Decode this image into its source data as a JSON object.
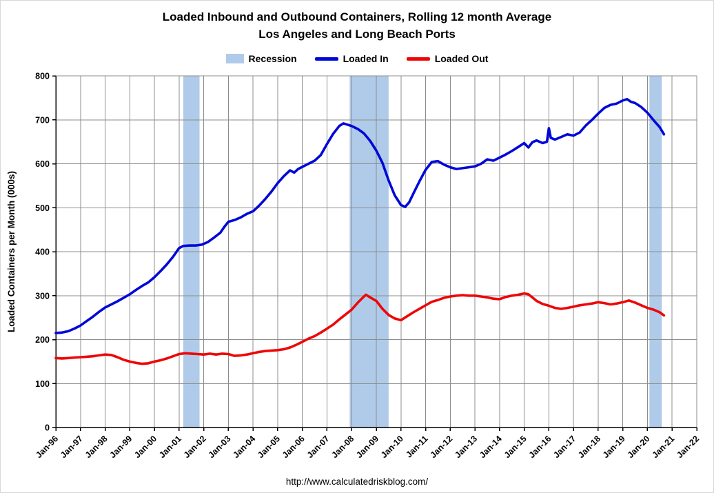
{
  "page": {
    "title_line1": "Loaded Inbound and Outbound Containers, Rolling 12 month Average",
    "title_line2": "Los Angeles and Long Beach Ports",
    "footer_url": "http://www.calculatedriskblog.com/"
  },
  "legend": {
    "recession_label": "Recession",
    "loaded_in_label": "Loaded In",
    "loaded_out_label": "Loaded Out"
  },
  "chart_data": {
    "type": "line",
    "title": "Loaded Inbound and Outbound Containers, Rolling 12 month Average — Los Angeles and Long Beach Ports",
    "xlabel": "",
    "ylabel": "Loaded Containers per Month (000s)",
    "ylim": [
      0,
      800
    ],
    "ytick_step": 100,
    "xlim": [
      1996,
      2022
    ],
    "xtick_labels": [
      "Jan-96",
      "Jan-97",
      "Jan-98",
      "Jan-99",
      "Jan-00",
      "Jan-01",
      "Jan-02",
      "Jan-03",
      "Jan-04",
      "Jan-05",
      "Jan-06",
      "Jan-07",
      "Jan-08",
      "Jan-09",
      "Jan-10",
      "Jan-11",
      "Jan-12",
      "Jan-13",
      "Jan-14",
      "Jan-15",
      "Jan-16",
      "Jan-17",
      "Jan-18",
      "Jan-19",
      "Jan-20",
      "Jan-21",
      "Jan-22"
    ],
    "grid": true,
    "legend_position": "top",
    "colors": {
      "loaded_in": "#0008D8",
      "loaded_out": "#EE0606",
      "recession_band": "#AFCBE9",
      "gridline": "#8C8C8C",
      "axis": "#000000"
    },
    "recession_bands": [
      {
        "start": 2001.17,
        "end": 2001.83
      },
      {
        "start": 2007.92,
        "end": 2009.5
      },
      {
        "start": 2020.08,
        "end": 2020.58
      }
    ],
    "series": [
      {
        "name": "Loaded In",
        "color_key": "loaded_in",
        "points": [
          [
            1996.0,
            215
          ],
          [
            1996.25,
            216
          ],
          [
            1996.5,
            219
          ],
          [
            1996.75,
            225
          ],
          [
            1997.0,
            232
          ],
          [
            1997.25,
            242
          ],
          [
            1997.5,
            252
          ],
          [
            1997.75,
            263
          ],
          [
            1998.0,
            273
          ],
          [
            1998.25,
            280
          ],
          [
            1998.5,
            287
          ],
          [
            1998.75,
            295
          ],
          [
            1999.0,
            303
          ],
          [
            1999.25,
            313
          ],
          [
            1999.5,
            322
          ],
          [
            1999.75,
            330
          ],
          [
            2000.0,
            342
          ],
          [
            2000.25,
            356
          ],
          [
            2000.5,
            371
          ],
          [
            2000.75,
            388
          ],
          [
            2001.0,
            408
          ],
          [
            2001.17,
            413
          ],
          [
            2001.42,
            414
          ],
          [
            2001.67,
            414
          ],
          [
            2001.92,
            416
          ],
          [
            2002.17,
            422
          ],
          [
            2002.42,
            432
          ],
          [
            2002.67,
            443
          ],
          [
            2002.83,
            456
          ],
          [
            2003.0,
            468
          ],
          [
            2003.25,
            472
          ],
          [
            2003.5,
            478
          ],
          [
            2003.75,
            486
          ],
          [
            2004.0,
            492
          ],
          [
            2004.25,
            505
          ],
          [
            2004.5,
            520
          ],
          [
            2004.75,
            537
          ],
          [
            2005.0,
            556
          ],
          [
            2005.25,
            572
          ],
          [
            2005.5,
            585
          ],
          [
            2005.67,
            580
          ],
          [
            2005.83,
            588
          ],
          [
            2006.0,
            593
          ],
          [
            2006.25,
            600
          ],
          [
            2006.5,
            607
          ],
          [
            2006.75,
            620
          ],
          [
            2007.0,
            645
          ],
          [
            2007.25,
            668
          ],
          [
            2007.5,
            686
          ],
          [
            2007.67,
            692
          ],
          [
            2007.83,
            689
          ],
          [
            2008.0,
            686
          ],
          [
            2008.25,
            679
          ],
          [
            2008.5,
            669
          ],
          [
            2008.75,
            652
          ],
          [
            2009.0,
            630
          ],
          [
            2009.25,
            602
          ],
          [
            2009.5,
            562
          ],
          [
            2009.75,
            528
          ],
          [
            2010.0,
            506
          ],
          [
            2010.17,
            502
          ],
          [
            2010.33,
            512
          ],
          [
            2010.5,
            532
          ],
          [
            2010.75,
            560
          ],
          [
            2011.0,
            586
          ],
          [
            2011.25,
            604
          ],
          [
            2011.5,
            606
          ],
          [
            2011.75,
            598
          ],
          [
            2012.0,
            592
          ],
          [
            2012.25,
            588
          ],
          [
            2012.5,
            590
          ],
          [
            2012.75,
            592
          ],
          [
            2013.0,
            594
          ],
          [
            2013.25,
            600
          ],
          [
            2013.5,
            610
          ],
          [
            2013.75,
            607
          ],
          [
            2014.0,
            614
          ],
          [
            2014.25,
            621
          ],
          [
            2014.5,
            629
          ],
          [
            2014.75,
            638
          ],
          [
            2015.0,
            647
          ],
          [
            2015.17,
            637
          ],
          [
            2015.33,
            649
          ],
          [
            2015.5,
            653
          ],
          [
            2015.75,
            647
          ],
          [
            2015.92,
            650
          ],
          [
            2016.0,
            681
          ],
          [
            2016.08,
            659
          ],
          [
            2016.25,
            655
          ],
          [
            2016.5,
            661
          ],
          [
            2016.75,
            667
          ],
          [
            2017.0,
            664
          ],
          [
            2017.25,
            671
          ],
          [
            2017.5,
            687
          ],
          [
            2017.75,
            700
          ],
          [
            2018.0,
            714
          ],
          [
            2018.25,
            727
          ],
          [
            2018.5,
            734
          ],
          [
            2018.75,
            737
          ],
          [
            2019.0,
            744
          ],
          [
            2019.17,
            747
          ],
          [
            2019.33,
            741
          ],
          [
            2019.5,
            738
          ],
          [
            2019.75,
            729
          ],
          [
            2020.0,
            716
          ],
          [
            2020.25,
            699
          ],
          [
            2020.5,
            683
          ],
          [
            2020.67,
            667
          ]
        ]
      },
      {
        "name": "Loaded Out",
        "color_key": "loaded_out",
        "points": [
          [
            1996.0,
            158
          ],
          [
            1996.25,
            157
          ],
          [
            1996.5,
            158
          ],
          [
            1996.75,
            159
          ],
          [
            1997.0,
            160
          ],
          [
            1997.25,
            161
          ],
          [
            1997.5,
            162
          ],
          [
            1997.75,
            164
          ],
          [
            1998.0,
            166
          ],
          [
            1998.25,
            165
          ],
          [
            1998.5,
            160
          ],
          [
            1998.75,
            154
          ],
          [
            1999.0,
            150
          ],
          [
            1999.25,
            147
          ],
          [
            1999.5,
            145
          ],
          [
            1999.75,
            146
          ],
          [
            2000.0,
            150
          ],
          [
            2000.25,
            153
          ],
          [
            2000.5,
            157
          ],
          [
            2000.75,
            162
          ],
          [
            2001.0,
            167
          ],
          [
            2001.25,
            169
          ],
          [
            2001.5,
            168
          ],
          [
            2001.75,
            167
          ],
          [
            2002.0,
            166
          ],
          [
            2002.25,
            168
          ],
          [
            2002.5,
            166
          ],
          [
            2002.75,
            168
          ],
          [
            2003.0,
            167
          ],
          [
            2003.25,
            163
          ],
          [
            2003.5,
            164
          ],
          [
            2003.75,
            166
          ],
          [
            2004.0,
            169
          ],
          [
            2004.25,
            172
          ],
          [
            2004.5,
            174
          ],
          [
            2004.75,
            175
          ],
          [
            2005.0,
            176
          ],
          [
            2005.25,
            178
          ],
          [
            2005.5,
            182
          ],
          [
            2005.75,
            188
          ],
          [
            2006.0,
            195
          ],
          [
            2006.25,
            202
          ],
          [
            2006.5,
            208
          ],
          [
            2006.75,
            216
          ],
          [
            2007.0,
            225
          ],
          [
            2007.25,
            234
          ],
          [
            2007.5,
            246
          ],
          [
            2007.75,
            257
          ],
          [
            2008.0,
            268
          ],
          [
            2008.25,
            284
          ],
          [
            2008.5,
            298
          ],
          [
            2008.58,
            302
          ],
          [
            2008.75,
            296
          ],
          [
            2009.0,
            288
          ],
          [
            2009.25,
            270
          ],
          [
            2009.5,
            256
          ],
          [
            2009.75,
            248
          ],
          [
            2010.0,
            244
          ],
          [
            2010.25,
            253
          ],
          [
            2010.5,
            262
          ],
          [
            2010.75,
            270
          ],
          [
            2011.0,
            278
          ],
          [
            2011.25,
            286
          ],
          [
            2011.5,
            290
          ],
          [
            2011.75,
            295
          ],
          [
            2012.0,
            298
          ],
          [
            2012.25,
            300
          ],
          [
            2012.5,
            301
          ],
          [
            2012.75,
            300
          ],
          [
            2013.0,
            300
          ],
          [
            2013.25,
            298
          ],
          [
            2013.5,
            296
          ],
          [
            2013.75,
            293
          ],
          [
            2014.0,
            292
          ],
          [
            2014.25,
            297
          ],
          [
            2014.5,
            300
          ],
          [
            2014.75,
            302
          ],
          [
            2015.0,
            305
          ],
          [
            2015.17,
            303
          ],
          [
            2015.33,
            296
          ],
          [
            2015.5,
            288
          ],
          [
            2015.75,
            281
          ],
          [
            2016.0,
            277
          ],
          [
            2016.25,
            272
          ],
          [
            2016.5,
            270
          ],
          [
            2016.75,
            272
          ],
          [
            2017.0,
            275
          ],
          [
            2017.25,
            278
          ],
          [
            2017.5,
            280
          ],
          [
            2017.75,
            282
          ],
          [
            2018.0,
            285
          ],
          [
            2018.25,
            283
          ],
          [
            2018.5,
            280
          ],
          [
            2018.75,
            282
          ],
          [
            2019.0,
            285
          ],
          [
            2019.25,
            289
          ],
          [
            2019.5,
            284
          ],
          [
            2019.75,
            278
          ],
          [
            2020.0,
            272
          ],
          [
            2020.25,
            268
          ],
          [
            2020.5,
            262
          ],
          [
            2020.67,
            255
          ]
        ]
      }
    ]
  }
}
